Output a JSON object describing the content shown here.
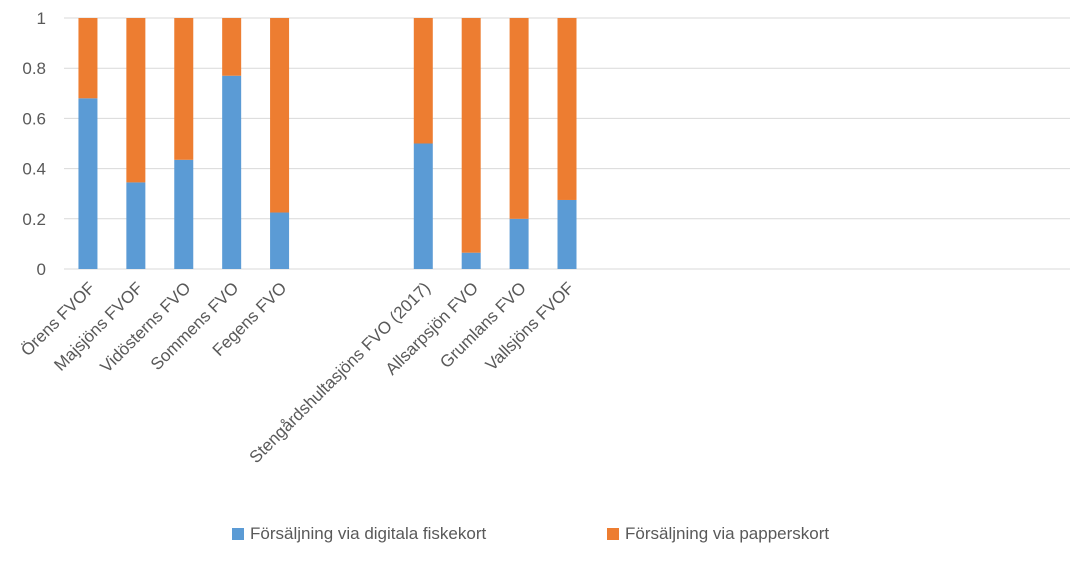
{
  "chart_data": {
    "type": "bar",
    "stacked": true,
    "categories": [
      "Örens FVOF",
      "Majsjöns FVOF",
      "Vidösterns FVO",
      "Sommens FVO",
      "Fegens FVO",
      "",
      "",
      "Stengårdshultasjöns FVO (2017)",
      "Allsarpsjön FVO",
      "Grumlans FVO",
      "Vallsjöns FVOF",
      "",
      "",
      "",
      "",
      "",
      "",
      "",
      "",
      "",
      ""
    ],
    "series": [
      {
        "name": "Försäljning via digitala fiskekort",
        "color": "#5B9BD5",
        "values": [
          0.68,
          0.345,
          0.435,
          0.77,
          0.225,
          null,
          null,
          0.5,
          0.065,
          0.2,
          0.275,
          null,
          null,
          null,
          null,
          null,
          null,
          null,
          null,
          null,
          null
        ]
      },
      {
        "name": "Försäljning via papperskort",
        "color": "#ED7D31",
        "values": [
          0.32,
          0.655,
          0.565,
          0.23,
          0.775,
          null,
          null,
          0.5,
          0.935,
          0.8,
          0.725,
          null,
          null,
          null,
          null,
          null,
          null,
          null,
          null,
          null,
          null
        ]
      }
    ],
    "yticks": [
      "0",
      "0.2",
      "0.4",
      "0.6",
      "0.8",
      "1"
    ],
    "ylim": [
      0,
      1
    ],
    "grid": true,
    "legend_position": "bottom"
  }
}
